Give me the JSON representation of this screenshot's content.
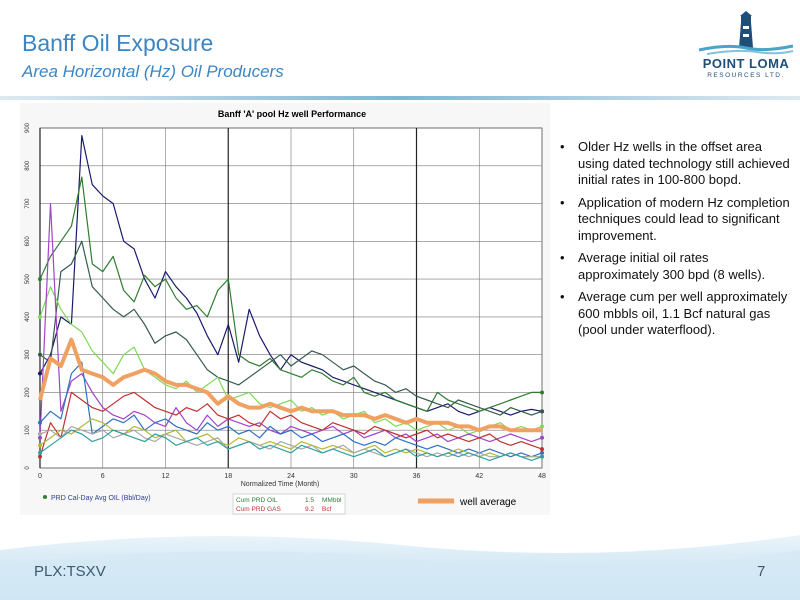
{
  "slide": {
    "title": "Banff Oil Exposure",
    "subtitle": "Area Horizontal (Hz) Oil Producers",
    "logo_name": "POINT LOMA",
    "logo_sub": "RESOURCES LTD.",
    "footer_left": "PLX:TSXV",
    "page_number": "7"
  },
  "bullets": [
    "Older Hz wells in the offset area using dated technology still achieved initial rates in 100-800 bopd.",
    "Application of modern Hz completion techniques could lead to significant improvement.",
    "Average initial oil rates approximately 300 bpd (8 wells).",
    "Average cum per well approximately 600 mbbls oil, 1.1 Bcf natural gas (pool under waterflood)."
  ],
  "colors": {
    "title": "#3a86c4",
    "well_average": "#f0a060"
  },
  "chart_data": {
    "type": "line",
    "title": "Banff 'A' pool Hz well Performance",
    "xlabel": "Normalized Time (Month)",
    "ylabel": "",
    "xlim": [
      0,
      48
    ],
    "ylim": [
      0,
      900
    ],
    "x_ticks": [
      0,
      6,
      12,
      18,
      24,
      30,
      36,
      42,
      48
    ],
    "y_ticks": [
      0,
      100,
      200,
      300,
      400,
      500,
      600,
      700,
      800,
      900
    ],
    "grid": true,
    "legend_text": "PRD Cal-Day Avg OIL (Bbl/Day)",
    "well_average_label": "well average",
    "cum_oil": {
      "label": "Cum PRD OIL",
      "value": "1.5",
      "unit": "MMbbl"
    },
    "cum_gas": {
      "label": "Cum PRD GAS",
      "value": "9.2",
      "unit": "Bcf"
    },
    "series": [
      {
        "color": "#1a1a6e",
        "values": [
          250,
          300,
          400,
          380,
          880,
          750,
          720,
          700,
          600,
          580,
          500,
          450,
          520,
          480,
          450,
          410,
          350,
          300,
          380,
          280,
          420,
          350,
          300,
          260,
          300,
          280,
          270,
          260,
          240,
          230,
          220,
          210,
          200,
          190,
          180,
          170,
          160,
          150,
          160,
          170,
          150,
          140,
          150,
          160,
          150,
          140,
          150,
          155,
          150
        ]
      },
      {
        "color": "#2e7d32",
        "values": [
          500,
          560,
          600,
          640,
          770,
          540,
          520,
          560,
          470,
          440,
          510,
          480,
          500,
          450,
          420,
          430,
          400,
          470,
          500,
          300,
          280,
          270,
          290,
          260,
          250,
          240,
          260,
          250,
          230,
          220,
          240,
          200,
          190,
          200,
          180,
          170,
          160,
          150,
          200,
          180,
          170,
          160,
          150,
          160,
          170,
          180,
          190,
          200,
          200
        ]
      },
      {
        "color": "#355c4a",
        "values": [
          300,
          280,
          520,
          540,
          600,
          480,
          450,
          420,
          400,
          420,
          380,
          330,
          350,
          360,
          340,
          300,
          260,
          240,
          230,
          220,
          240,
          260,
          280,
          300,
          270,
          290,
          310,
          300,
          280,
          260,
          270,
          250,
          230,
          220,
          200,
          210,
          190,
          180,
          170,
          160,
          180,
          170,
          160,
          150,
          140,
          160,
          150,
          140,
          150
        ]
      },
      {
        "color": "#7ed957",
        "values": [
          400,
          480,
          420,
          380,
          360,
          310,
          280,
          250,
          300,
          320,
          260,
          240,
          220,
          210,
          230,
          200,
          220,
          240,
          180,
          190,
          200,
          170,
          160,
          170,
          180,
          150,
          160,
          140,
          150,
          130,
          140,
          150,
          120,
          130,
          110,
          120,
          100,
          110,
          120,
          100,
          110,
          90,
          100,
          110,
          120,
          100,
          110,
          100,
          110
        ]
      },
      {
        "color": "#a044c8",
        "values": [
          80,
          700,
          150,
          230,
          250,
          200,
          160,
          140,
          130,
          150,
          140,
          120,
          110,
          160,
          120,
          100,
          140,
          110,
          130,
          120,
          110,
          120,
          100,
          90,
          110,
          100,
          90,
          100,
          110,
          90,
          100,
          80,
          90,
          100,
          80,
          90,
          70,
          80,
          90,
          70,
          80,
          90,
          80,
          70,
          80,
          90,
          80,
          70,
          80
        ]
      },
      {
        "color": "#c03030",
        "values": [
          30,
          120,
          80,
          200,
          180,
          160,
          150,
          170,
          190,
          200,
          180,
          160,
          150,
          140,
          160,
          150,
          170,
          140,
          130,
          140,
          120,
          110,
          150,
          130,
          140,
          120,
          110,
          100,
          120,
          110,
          100,
          90,
          110,
          100,
          90,
          80,
          90,
          100,
          80,
          90,
          80,
          70,
          80,
          90,
          70,
          60,
          70,
          60,
          50
        ]
      },
      {
        "color": "#3070c0",
        "values": [
          120,
          150,
          130,
          250,
          280,
          90,
          110,
          130,
          120,
          140,
          100,
          120,
          130,
          110,
          100,
          90,
          120,
          100,
          110,
          90,
          100,
          80,
          110,
          90,
          100,
          80,
          90,
          70,
          80,
          90,
          70,
          60,
          70,
          60,
          80,
          70,
          60,
          50,
          60,
          50,
          40,
          50,
          40,
          50,
          40,
          30,
          40,
          30,
          40
        ]
      },
      {
        "color": "#b5b830",
        "values": [
          60,
          80,
          100,
          90,
          110,
          130,
          120,
          100,
          90,
          110,
          100,
          80,
          90,
          100,
          70,
          80,
          90,
          70,
          60,
          80,
          70,
          60,
          70,
          60,
          50,
          70,
          60,
          50,
          60,
          50,
          40,
          50,
          60,
          40,
          50,
          40,
          50,
          40,
          30,
          40,
          50,
          40,
          30,
          40,
          30,
          40,
          30,
          30,
          30
        ]
      },
      {
        "color": "#a8a8a8",
        "values": [
          90,
          100,
          80,
          110,
          100,
          90,
          100,
          80,
          90,
          100,
          80,
          70,
          90,
          80,
          70,
          60,
          70,
          80,
          50,
          60,
          70,
          60,
          50,
          70,
          60,
          50,
          60,
          40,
          50,
          60,
          40,
          50,
          40,
          30,
          40,
          50,
          40,
          30,
          40,
          30,
          40,
          30,
          40,
          30,
          30,
          40,
          30,
          30,
          30
        ]
      },
      {
        "color": "#30a0a0",
        "values": [
          40,
          60,
          80,
          100,
          90,
          70,
          80,
          100,
          90,
          80,
          70,
          90,
          80,
          60,
          70,
          80,
          60,
          70,
          50,
          60,
          70,
          50,
          60,
          50,
          40,
          60,
          50,
          40,
          50,
          40,
          30,
          40,
          50,
          30,
          40,
          50,
          30,
          40,
          30,
          40,
          30,
          40,
          30,
          20,
          30,
          40,
          30,
          20,
          30
        ]
      }
    ],
    "well_average": [
      180,
      290,
      270,
      340,
      260,
      250,
      240,
      220,
      240,
      250,
      260,
      250,
      230,
      220,
      220,
      210,
      200,
      170,
      190,
      170,
      160,
      160,
      170,
      160,
      150,
      160,
      150,
      150,
      150,
      140,
      140,
      140,
      130,
      140,
      130,
      120,
      130,
      120,
      120,
      120,
      110,
      110,
      100,
      110,
      110,
      100,
      100,
      100,
      100
    ]
  }
}
